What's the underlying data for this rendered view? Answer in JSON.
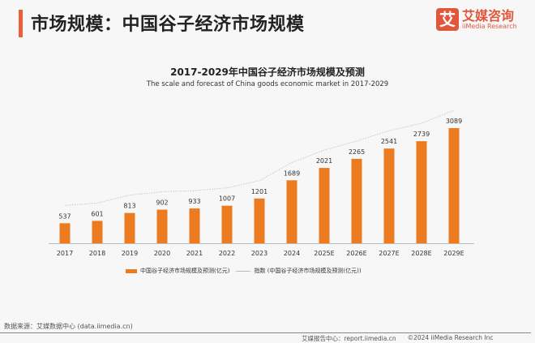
{
  "header": {
    "title": "市场规模：中国谷子经济市场规模",
    "logo_mark": "艾",
    "logo_cn": "艾媒咨询",
    "logo_en": "iiMedia Research"
  },
  "chart_data": {
    "type": "bar",
    "title": "2017-2029年中国谷子经济市场规模及预测",
    "subtitle": "The scale and forecast of China goods economic market in 2017-2029",
    "categories": [
      "2017",
      "2018",
      "2019",
      "2020",
      "2021",
      "2022",
      "2023",
      "2024",
      "2025E",
      "2026E",
      "2027E",
      "2028E",
      "2029E"
    ],
    "series": [
      {
        "name": "中国谷子经济市场规模及预测(亿元)",
        "type": "bar",
        "values": [
          537,
          601,
          813,
          902,
          933,
          1007,
          1201,
          1689,
          2021,
          2265,
          2541,
          2739,
          3089
        ]
      },
      {
        "name": "指数 (中国谷子经济市场规模及预测(亿元))",
        "type": "line",
        "values": [
          537,
          601,
          813,
          902,
          933,
          1007,
          1201,
          1689,
          2021,
          2265,
          2541,
          2739,
          3089
        ]
      }
    ],
    "ylim": [
      0,
      3100
    ],
    "grid": false,
    "legend_position": "bottom",
    "colors": {
      "bar": "#ec7a1e",
      "line": "#c8c8c8"
    }
  },
  "footer": {
    "source": "数据来源：艾媒数据中心 (data.iimedia.cn)",
    "report": "艾媒报告中心：report.iimedia.cn",
    "copyright": "©2024 iiMedia Research Inc"
  }
}
